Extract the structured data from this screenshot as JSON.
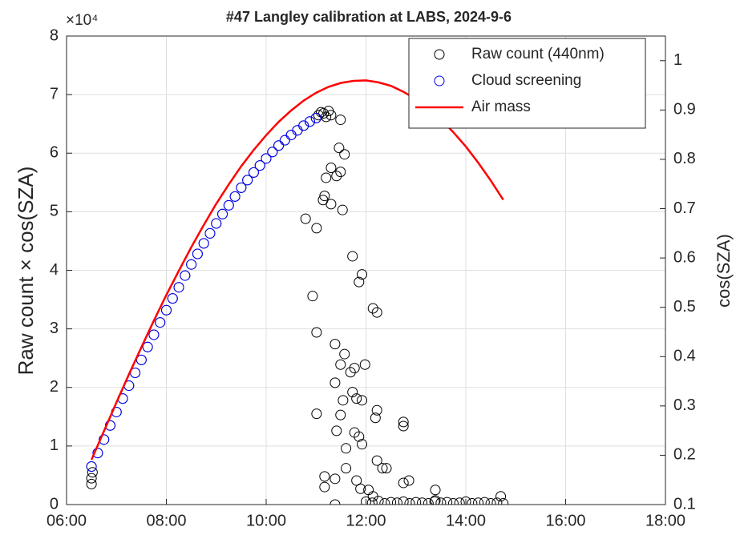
{
  "chart_data": {
    "type": "scatter",
    "title": "#47 Langley calibration at LABS, 2024-9-6",
    "y_exponent": "×10⁴",
    "ylabel": "Raw count × cos(SZA)",
    "y2label": "cos(SZA)",
    "xlim": [
      6,
      18
    ],
    "xticks": [
      {
        "value": 6,
        "label": "06:00"
      },
      {
        "value": 8,
        "label": "08:00"
      },
      {
        "value": 10,
        "label": "10:00"
      },
      {
        "value": 12,
        "label": "12:00"
      },
      {
        "value": 14,
        "label": "14:00"
      },
      {
        "value": 16,
        "label": "16:00"
      },
      {
        "value": 18,
        "label": "18:00"
      }
    ],
    "ylim": [
      0,
      8
    ],
    "yticks": [
      0,
      1,
      2,
      3,
      4,
      5,
      6,
      7,
      8
    ],
    "y2lim": [
      0.1,
      1.05
    ],
    "y2ticks": [
      0.1,
      0.2,
      0.3,
      0.4,
      0.5,
      0.6,
      0.7,
      0.8,
      0.9,
      1
    ],
    "grid": true,
    "legend": "top-right",
    "series": [
      {
        "name": "Raw count (440nm)",
        "color": "#000000",
        "type": "scatter",
        "x": [
          6.5,
          6.5,
          6.52,
          6.5,
          6.625,
          6.75,
          6.875,
          7,
          7.125,
          7.25,
          7.375,
          7.5,
          7.625,
          7.75,
          7.875,
          8,
          8.125,
          8.25,
          8.375,
          8.5,
          8.625,
          8.75,
          8.875,
          9,
          9.125,
          9.25,
          9.375,
          9.5,
          9.625,
          9.75,
          9.875,
          10,
          10.125,
          10.25,
          10.375,
          10.5,
          10.625,
          10.75,
          10.875,
          11,
          11.05,
          11.1,
          11.15,
          11.2,
          11.25,
          11.3,
          10.79,
          11.01,
          10.93,
          11.01,
          11.01,
          11.14,
          11.17,
          11.2,
          11.3,
          11.41,
          11.46,
          11.49,
          11.53,
          11.49,
          11.57,
          11.3,
          11.38,
          11.57,
          11.49,
          11.38,
          11.54,
          11.41,
          11.49,
          11.6,
          11.6,
          11.17,
          11.17,
          11.38,
          11.38,
          11.73,
          11.86,
          11.92,
          11.69,
          11.77,
          11.98,
          11.73,
          11.81,
          11.92,
          11.77,
          11.86,
          11.92,
          12.14,
          12.22,
          12.22,
          12.19,
          12.22,
          12.33,
          12.41,
          12.75,
          12.75,
          12.75,
          12.86,
          13.39,
          13.39,
          11.81,
          11.89,
          12.05,
          12.14,
          12.0,
          12.125,
          12.25,
          12.375,
          12.5,
          12.625,
          12.75,
          12.875,
          13.0,
          13.125,
          13.25,
          13.375,
          13.5,
          13.625,
          13.75,
          13.875,
          14.0,
          14.125,
          14.25,
          14.375,
          14.5,
          14.625,
          14.75,
          14.7
        ],
        "values": [
          0.35,
          0.45,
          0.55,
          0.65,
          0.88,
          1.11,
          1.35,
          1.58,
          1.81,
          2.03,
          2.25,
          2.47,
          2.69,
          2.9,
          3.11,
          3.32,
          3.52,
          3.71,
          3.91,
          4.1,
          4.28,
          4.46,
          4.63,
          4.8,
          4.96,
          5.11,
          5.26,
          5.41,
          5.54,
          5.67,
          5.79,
          5.91,
          6.02,
          6.13,
          6.22,
          6.31,
          6.39,
          6.47,
          6.54,
          6.6,
          6.65,
          6.7,
          6.68,
          6.62,
          6.72,
          6.65,
          4.88,
          4.72,
          3.56,
          2.94,
          1.55,
          5.2,
          5.27,
          5.58,
          5.75,
          5.61,
          6.09,
          5.68,
          5.03,
          6.57,
          5.98,
          5.13,
          2.74,
          2.57,
          2.39,
          2.08,
          1.78,
          1.26,
          1.53,
          0.96,
          0.62,
          0.48,
          0.3,
          0.44,
          0,
          4.24,
          3.8,
          3.93,
          2.26,
          2.33,
          2.39,
          1.92,
          1.81,
          1.78,
          1.23,
          1.16,
          1.03,
          3.35,
          3.28,
          1.61,
          1.48,
          0.75,
          0.62,
          0.62,
          1.41,
          1.34,
          0.37,
          0.41,
          0.25,
          0.07,
          0.41,
          0.27,
          0.25,
          0.14,
          0.05,
          0.03,
          0.06,
          0.02,
          0.04,
          0.03,
          0.05,
          0.02,
          0.04,
          0.03,
          0.02,
          0.05,
          0.03,
          0.04,
          0.02,
          0.03,
          0.05,
          0.02,
          0.03,
          0.04,
          0.02,
          0.03,
          0.02,
          0.14
        ]
      },
      {
        "name": "Cloud screening",
        "color": "#0000ff",
        "type": "scatter",
        "x": [
          6.5,
          6.625,
          6.75,
          6.875,
          7,
          7.125,
          7.25,
          7.375,
          7.5,
          7.625,
          7.75,
          7.875,
          8,
          8.125,
          8.25,
          8.375,
          8.5,
          8.625,
          8.75,
          8.875,
          9,
          9.125,
          9.25,
          9.375,
          9.5,
          9.625,
          9.75,
          9.875,
          10,
          10.125,
          10.25,
          10.375,
          10.5,
          10.625,
          10.75,
          10.875,
          11
        ],
        "values": [
          0.65,
          0.88,
          1.11,
          1.35,
          1.58,
          1.81,
          2.03,
          2.25,
          2.47,
          2.69,
          2.9,
          3.11,
          3.32,
          3.52,
          3.71,
          3.91,
          4.1,
          4.28,
          4.46,
          4.63,
          4.8,
          4.96,
          5.11,
          5.26,
          5.41,
          5.54,
          5.67,
          5.79,
          5.91,
          6.02,
          6.13,
          6.22,
          6.31,
          6.39,
          6.47,
          6.54,
          6.6
        ]
      },
      {
        "name": "Air mass",
        "color": "#ff0000",
        "type": "line",
        "axis": "y2",
        "x": [
          6.5,
          6.75,
          7,
          7.25,
          7.5,
          7.75,
          8,
          8.25,
          8.5,
          8.75,
          9,
          9.25,
          9.5,
          9.75,
          10,
          10.25,
          10.5,
          10.75,
          11,
          11.25,
          11.5,
          11.75,
          12,
          12.25,
          12.5,
          12.75,
          13,
          13.25,
          13.5,
          13.75,
          14,
          14.25,
          14.5,
          14.75
        ],
        "values": [
          0.191,
          0.249,
          0.307,
          0.364,
          0.419,
          0.473,
          0.525,
          0.574,
          0.622,
          0.667,
          0.71,
          0.749,
          0.786,
          0.819,
          0.849,
          0.876,
          0.899,
          0.919,
          0.935,
          0.947,
          0.955,
          0.959,
          0.96,
          0.956,
          0.949,
          0.937,
          0.922,
          0.904,
          0.881,
          0.855,
          0.826,
          0.793,
          0.757,
          0.718
        ]
      }
    ]
  }
}
